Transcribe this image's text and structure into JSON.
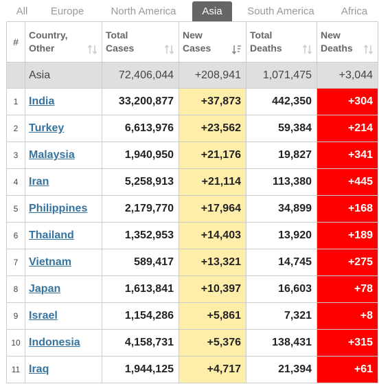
{
  "tabs": [
    {
      "label": "All"
    },
    {
      "label": "Europe"
    },
    {
      "label": "North America"
    },
    {
      "label": "Asia"
    },
    {
      "label": "South America"
    },
    {
      "label": "Africa"
    }
  ],
  "active_tab": "Asia",
  "headers": {
    "idx": "#",
    "country": [
      "Country,",
      "Other"
    ],
    "total_cases": [
      "Total",
      "Cases"
    ],
    "new_cases": [
      "New",
      "Cases"
    ],
    "total_deaths": [
      "Total",
      "Deaths"
    ],
    "new_deaths": [
      "New",
      "Deaths"
    ]
  },
  "total_row": {
    "country": "Asia",
    "total_cases": "72,406,044",
    "new_cases": "+208,941",
    "total_deaths": "1,071,475",
    "new_deaths": "+3,044"
  },
  "rows": [
    {
      "idx": "1",
      "country": "India",
      "total_cases": "33,200,877",
      "new_cases": "+37,873",
      "total_deaths": "442,350",
      "new_deaths": "+304"
    },
    {
      "idx": "2",
      "country": "Turkey",
      "total_cases": "6,613,976",
      "new_cases": "+23,562",
      "total_deaths": "59,384",
      "new_deaths": "+214"
    },
    {
      "idx": "3",
      "country": "Malaysia",
      "total_cases": "1,940,950",
      "new_cases": "+21,176",
      "total_deaths": "19,827",
      "new_deaths": "+341"
    },
    {
      "idx": "4",
      "country": "Iran",
      "total_cases": "5,258,913",
      "new_cases": "+21,114",
      "total_deaths": "113,380",
      "new_deaths": "+445"
    },
    {
      "idx": "5",
      "country": "Philippines",
      "total_cases": "2,179,770",
      "new_cases": "+17,964",
      "total_deaths": "34,899",
      "new_deaths": "+168"
    },
    {
      "idx": "6",
      "country": "Thailand",
      "total_cases": "1,352,953",
      "new_cases": "+14,403",
      "total_deaths": "13,920",
      "new_deaths": "+189"
    },
    {
      "idx": "7",
      "country": "Vietnam",
      "total_cases": "589,417",
      "new_cases": "+13,321",
      "total_deaths": "14,745",
      "new_deaths": "+275"
    },
    {
      "idx": "8",
      "country": "Japan",
      "total_cases": "1,613,841",
      "new_cases": "+10,397",
      "total_deaths": "16,603",
      "new_deaths": "+78"
    },
    {
      "idx": "9",
      "country": "Israel",
      "total_cases": "1,154,286",
      "new_cases": "+5,861",
      "total_deaths": "7,321",
      "new_deaths": "+8"
    },
    {
      "idx": "10",
      "country": "Indonesia",
      "total_cases": "4,158,731",
      "new_cases": "+5,376",
      "total_deaths": "138,431",
      "new_deaths": "+315"
    },
    {
      "idx": "11",
      "country": "Iraq",
      "total_cases": "1,944,125",
      "new_cases": "+4,717",
      "total_deaths": "21,394",
      "new_deaths": "+61"
    }
  ],
  "colors": {
    "link": "#35739e",
    "new_cases_bg": "#ffeeaa",
    "new_deaths_bg": "#ff0000",
    "active_tab_bg": "#666666",
    "total_row_bg": "#dfdfdf"
  },
  "icons": {
    "sort_default": "sort-arrows-icon",
    "sort_active_desc": "sort-desc-icon"
  }
}
